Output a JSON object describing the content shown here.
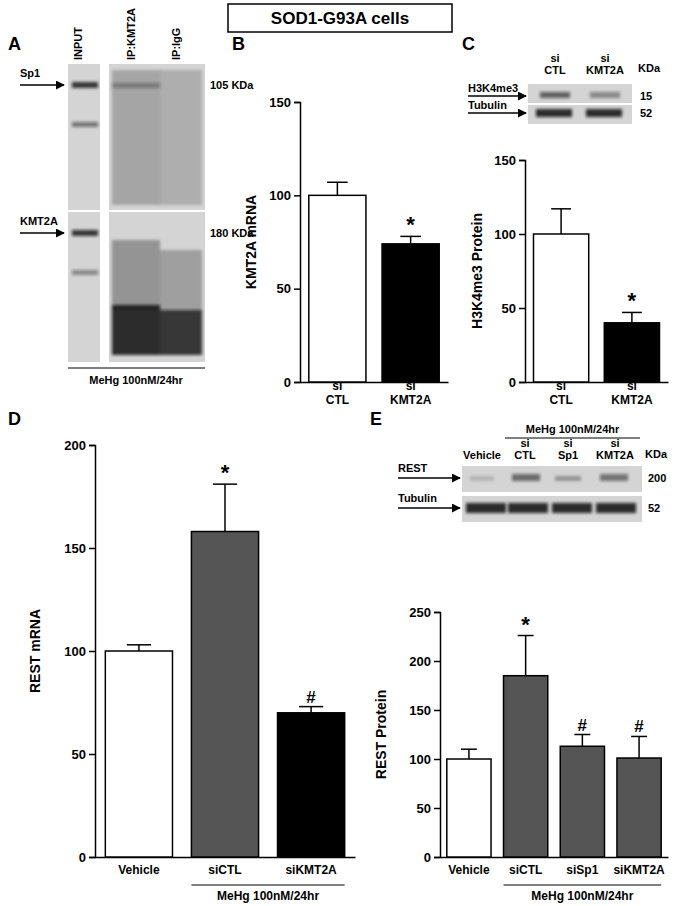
{
  "figure_title": "SOD1-G93A cells",
  "blots": [
    {
      "panel": "A",
      "lanes": [
        "INPUT",
        "IP:KMT2A",
        "IP:IgG"
      ],
      "rows": [
        {
          "label": "Sp1",
          "size": "105 KDa"
        },
        {
          "label": "KMT2A",
          "size": "180 KDa"
        }
      ],
      "footer": "MeHg 100nM/24hr"
    },
    {
      "lanes": [
        "si\nCTL",
        "si\nKMT2A"
      ],
      "size_header": "KDa",
      "rows": [
        {
          "label": "H3K4me3",
          "size": "15"
        },
        {
          "label": "Tubulin",
          "size": "52"
        }
      ]
    },
    {
      "treatment": "MeHg 100nM/24hr",
      "treatment_lanes": [
        1,
        3
      ],
      "lanes": [
        "Vehicle",
        "si\nCTL",
        "si\nSp1",
        "si\nKMT2A"
      ],
      "size_header": "KDa",
      "rows": [
        {
          "label": "REST",
          "size": "200"
        },
        {
          "label": "Tubulin",
          "size": "52"
        }
      ]
    }
  ],
  "chart_data": [
    {
      "type": "bar",
      "panel": "B",
      "ylabel": "KMT2A mRNA",
      "categories": [
        "si\nCTL",
        "si\nKMT2A"
      ],
      "values": [
        100,
        74
      ],
      "errors": [
        7,
        4
      ],
      "colors": [
        "#ffffff",
        "#000000"
      ],
      "annotations": [
        null,
        "*"
      ],
      "ylim": [
        0,
        150
      ],
      "yticks": [
        0,
        50,
        100,
        150
      ]
    },
    {
      "type": "bar",
      "panel": "C",
      "ylabel": "H3K4me3 Protein",
      "categories": [
        "si\nCTL",
        "si\nKMT2A"
      ],
      "values": [
        100,
        40
      ],
      "errors": [
        17,
        7
      ],
      "colors": [
        "#ffffff",
        "#000000"
      ],
      "annotations": [
        null,
        "*"
      ],
      "ylim": [
        0,
        150
      ],
      "yticks": [
        0,
        50,
        100,
        150
      ]
    },
    {
      "type": "bar",
      "panel": "D",
      "ylabel": "REST mRNA",
      "categories": [
        "Vehicle",
        "siCTL",
        "siKMT2A"
      ],
      "values": [
        100,
        158,
        70
      ],
      "errors": [
        3,
        23,
        3
      ],
      "colors": [
        "#ffffff",
        "#555555",
        "#000000"
      ],
      "annotations": [
        null,
        "*",
        "#"
      ],
      "group": {
        "label": "MeHg 100nM/24hr",
        "categories": [
          1,
          2
        ]
      },
      "ylim": [
        0,
        200
      ],
      "yticks": [
        0,
        50,
        100,
        150,
        200
      ]
    },
    {
      "type": "bar",
      "panel": "E",
      "ylabel": "REST Protein",
      "categories": [
        "Vehicle",
        "siCTL",
        "siSp1",
        "siKMT2A"
      ],
      "values": [
        100,
        185,
        113,
        101
      ],
      "errors": [
        10,
        41,
        12,
        22
      ],
      "colors": [
        "#ffffff",
        "#555555",
        "#555555",
        "#555555"
      ],
      "annotations": [
        null,
        "*",
        "#",
        "#"
      ],
      "group": {
        "label": "MeHg 100nM/24hr",
        "categories": [
          1,
          3
        ]
      },
      "ylim": [
        0,
        250
      ],
      "yticks": [
        0,
        50,
        100,
        150,
        200,
        250
      ]
    }
  ]
}
